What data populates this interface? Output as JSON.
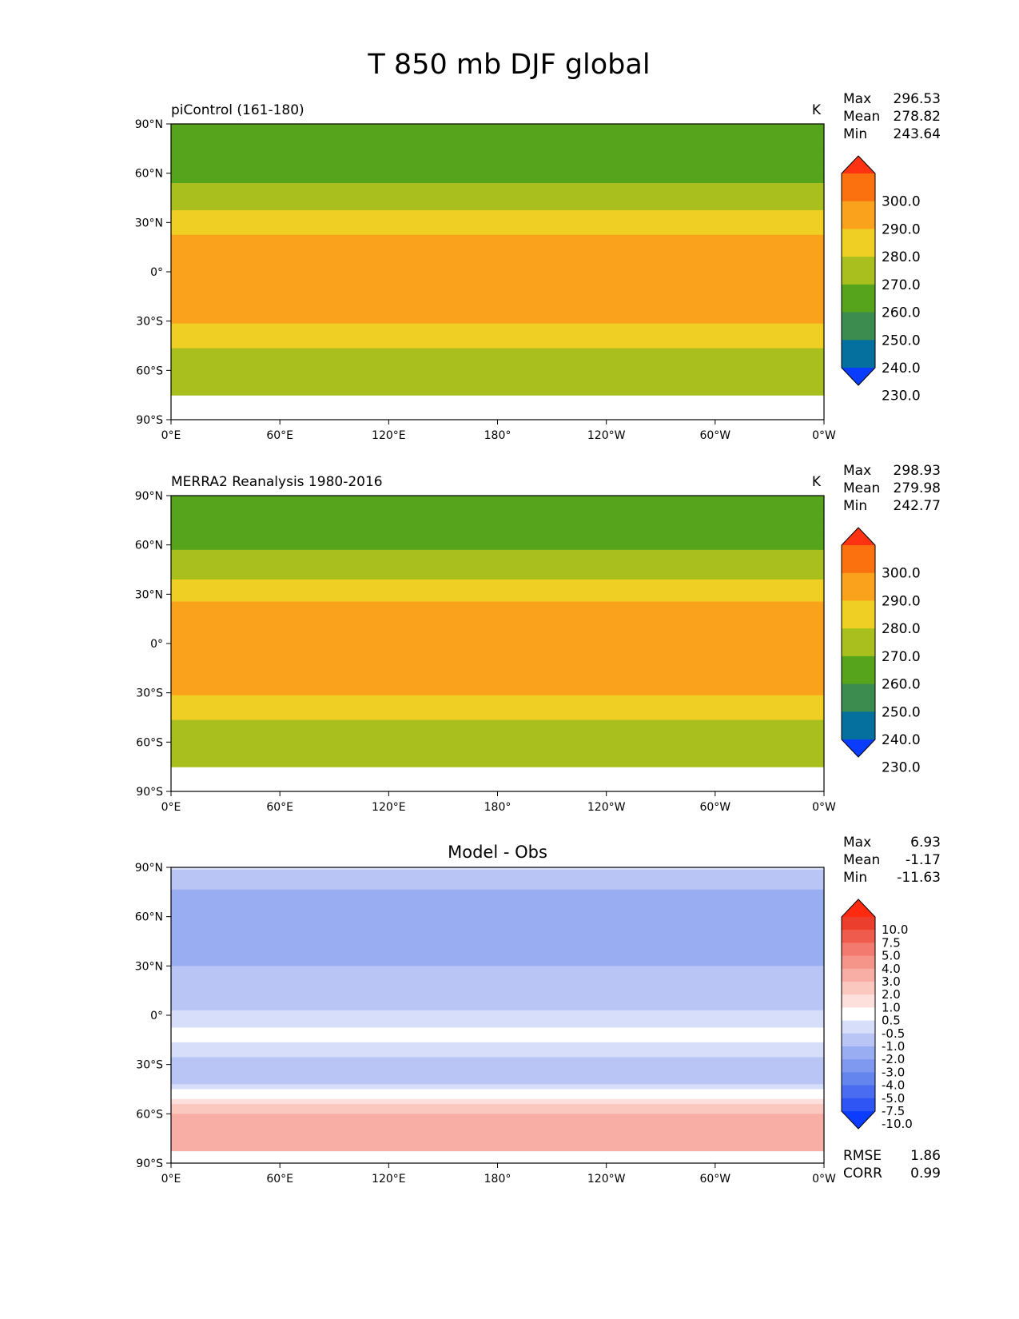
{
  "figure": {
    "title": "T 850 mb DJF global"
  },
  "chart_data": [
    {
      "type": "heatmap",
      "title": "piControl (161-180)",
      "units": "K",
      "stats": {
        "max_label": "Max",
        "max": "296.53",
        "mean_label": "Mean",
        "mean": "278.82",
        "min_label": "Min",
        "min": "243.64"
      },
      "x_ticks": [
        "0°E",
        "60°E",
        "120°E",
        "180°",
        "120°W",
        "60°W",
        "0°W"
      ],
      "y_ticks": [
        "90°N",
        "60°N",
        "30°N",
        "0°",
        "30°S",
        "60°S",
        "90°S"
      ],
      "xlim": [
        0,
        360
      ],
      "ylim": [
        -90,
        90
      ],
      "colorbar": {
        "levels": [
          230,
          240,
          250,
          260,
          270,
          280,
          290,
          300
        ],
        "tick_labels": [
          "300.0",
          "290.0",
          "280.0",
          "270.0",
          "260.0",
          "250.0",
          "240.0",
          "230.0"
        ],
        "colors": [
          "#0a3cff",
          "#05709d",
          "#3d8c4f",
          "#56a31c",
          "#a8bf1e",
          "#f0cf25",
          "#fba21d",
          "#fb700f",
          "#ff3311"
        ],
        "extend": "both"
      },
      "field": {
        "description": "zonal temperature bands, warm tropics, cold poles",
        "zonal_profile": [
          [
            90,
            252
          ],
          [
            75,
            252
          ],
          [
            60,
            257
          ],
          [
            45,
            264
          ],
          [
            35,
            272
          ],
          [
            25,
            279
          ],
          [
            10,
            284
          ],
          [
            0,
            285
          ],
          [
            -15,
            283
          ],
          [
            -30,
            281
          ],
          [
            -38,
            275
          ],
          [
            -50,
            268
          ],
          [
            -60,
            264
          ],
          [
            -75,
            262
          ]
        ],
        "missing_below": -75
      }
    },
    {
      "type": "heatmap",
      "title": "MERRA2 Reanalysis 1980-2016",
      "units": "K",
      "stats": {
        "max_label": "Max",
        "max": "298.93",
        "mean_label": "Mean",
        "mean": "279.98",
        "min_label": "Min",
        "min": "242.77"
      },
      "x_ticks": [
        "0°E",
        "60°E",
        "120°E",
        "180°",
        "120°W",
        "60°W",
        "0°W"
      ],
      "y_ticks": [
        "90°N",
        "60°N",
        "30°N",
        "0°",
        "30°S",
        "60°S",
        "90°S"
      ],
      "xlim": [
        0,
        360
      ],
      "ylim": [
        -90,
        90
      ],
      "colorbar": {
        "levels": [
          230,
          240,
          250,
          260,
          270,
          280,
          290,
          300
        ],
        "tick_labels": [
          "300.0",
          "290.0",
          "280.0",
          "270.0",
          "260.0",
          "250.0",
          "240.0",
          "230.0"
        ],
        "colors": [
          "#0a3cff",
          "#05709d",
          "#3d8c4f",
          "#56a31c",
          "#a8bf1e",
          "#f0cf25",
          "#fba21d",
          "#fb700f",
          "#ff3311"
        ],
        "extend": "both"
      },
      "field": {
        "description": "zonal temperature bands, broad warm tropical belt",
        "zonal_profile": [
          [
            90,
            253
          ],
          [
            75,
            253
          ],
          [
            60,
            258
          ],
          [
            45,
            266
          ],
          [
            35,
            273
          ],
          [
            25,
            280
          ],
          [
            15,
            286
          ],
          [
            0,
            287
          ],
          [
            -15,
            284
          ],
          [
            -30,
            281
          ],
          [
            -38,
            276
          ],
          [
            -50,
            268
          ],
          [
            -60,
            264
          ],
          [
            -75,
            262
          ]
        ],
        "missing_below": -75
      }
    },
    {
      "type": "heatmap",
      "title": "Model - Obs",
      "units": "",
      "stats": {
        "max_label": "Max",
        "max": "6.93",
        "mean_label": "Mean",
        "mean": "-1.17",
        "min_label": "Min",
        "min": "-11.63"
      },
      "metrics": {
        "rmse_label": "RMSE",
        "rmse": "1.86",
        "corr_label": "CORR",
        "corr": "0.99"
      },
      "x_ticks": [
        "0°E",
        "60°E",
        "120°E",
        "180°",
        "120°W",
        "60°W",
        "0°W"
      ],
      "y_ticks": [
        "90°N",
        "60°N",
        "30°N",
        "0°",
        "30°S",
        "60°S",
        "90°S"
      ],
      "xlim": [
        0,
        360
      ],
      "ylim": [
        -90,
        90
      ],
      "colorbar": {
        "levels": [
          -10.0,
          -7.5,
          -5.0,
          -4.0,
          -3.0,
          -2.0,
          -1.0,
          -0.5,
          0.5,
          1.0,
          2.0,
          3.0,
          4.0,
          5.0,
          7.5,
          10.0
        ],
        "tick_labels": [
          "10.0",
          "7.5",
          "5.0",
          "4.0",
          "3.0",
          "2.0",
          "1.0",
          "0.5",
          "-0.5",
          "-1.0",
          "-2.0",
          "-3.0",
          "-4.0",
          "-5.0",
          "-7.5",
          "-10.0"
        ],
        "colors": [
          "#0c3cff",
          "#2f55f5",
          "#4a6cf0",
          "#6585ee",
          "#7f99f0",
          "#99adf2",
          "#b9c6f5",
          "#d6def9",
          "#ffffff",
          "#fde0dc",
          "#fbc8c0",
          "#f8aea5",
          "#f5958a",
          "#f27a6e",
          "#ef5c4d",
          "#ec3e2c",
          "#ff2a0f"
        ],
        "extend": "both"
      },
      "field": {
        "description": "model cooler than observations over most of globe, warmer over southern ocean / antarctic coast",
        "zonal_profile": [
          [
            90,
            -0.8
          ],
          [
            75,
            -2.2
          ],
          [
            60,
            -2.6
          ],
          [
            45,
            -2.3
          ],
          [
            30,
            -2.0
          ],
          [
            15,
            -1.6
          ],
          [
            5,
            -1.2
          ],
          [
            0,
            -0.6
          ],
          [
            -15,
            -0.4
          ],
          [
            -30,
            -1.3
          ],
          [
            -40,
            -1.2
          ],
          [
            -48,
            -0.2
          ],
          [
            -55,
            1.3
          ],
          [
            -60,
            2.1
          ],
          [
            -68,
            2.6
          ],
          [
            -75,
            2.0
          ]
        ],
        "missing_below": -82
      }
    }
  ]
}
